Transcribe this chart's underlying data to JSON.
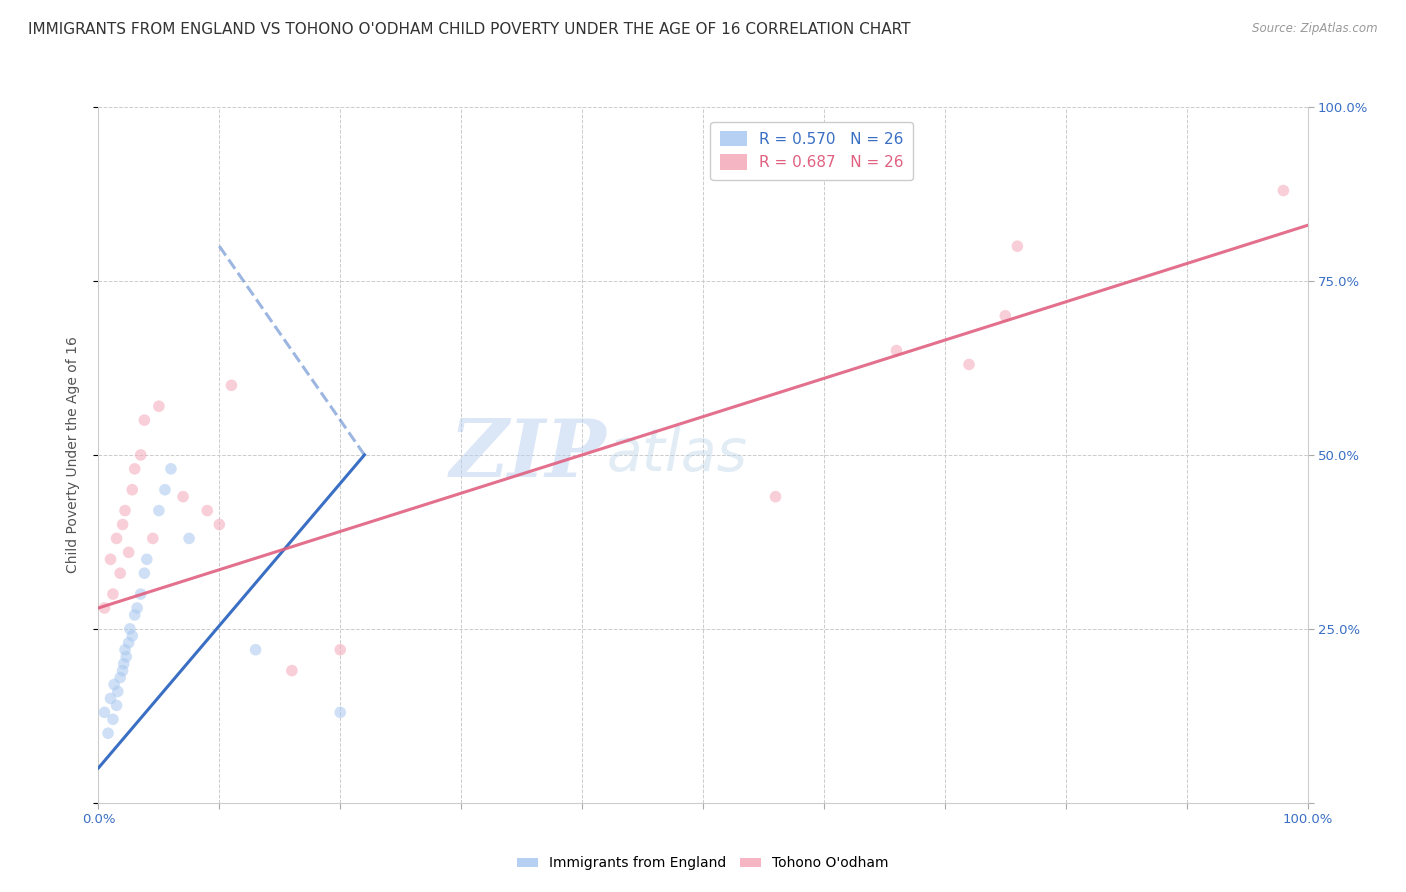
{
  "title": "IMMIGRANTS FROM ENGLAND VS TOHONO O'ODHAM CHILD POVERTY UNDER THE AGE OF 16 CORRELATION CHART",
  "source": "Source: ZipAtlas.com",
  "ylabel": "Child Poverty Under the Age of 16",
  "xlim": [
    0.0,
    1.0
  ],
  "ylim": [
    0.0,
    1.0
  ],
  "xticks": [
    0.0,
    0.1,
    0.2,
    0.3,
    0.4,
    0.5,
    0.6,
    0.7,
    0.8,
    0.9,
    1.0
  ],
  "yticks": [
    0.0,
    0.25,
    0.5,
    0.75,
    1.0
  ],
  "xticklabels": [
    "0.0%",
    "",
    "",
    "",
    "",
    "",
    "",
    "",
    "",
    "",
    "100.0%"
  ],
  "yticklabels_right": [
    "",
    "25.0%",
    "50.0%",
    "75.0%",
    "100.0%"
  ],
  "watermark_zip": "ZIP",
  "watermark_atlas": "atlas",
  "legend_label_blue": "Immigrants from England",
  "legend_label_pink": "Tohono O'odham",
  "blue_color": "#a8c8f0",
  "pink_color": "#f4a8b8",
  "blue_line_color": "#3a6fc4",
  "pink_line_color": "#e06080",
  "title_fontsize": 11,
  "axis_fontsize": 10,
  "tick_fontsize": 9.5,
  "blue_scatter_x": [
    0.005,
    0.008,
    0.01,
    0.012,
    0.013,
    0.015,
    0.016,
    0.018,
    0.02,
    0.021,
    0.022,
    0.023,
    0.025,
    0.026,
    0.028,
    0.03,
    0.032,
    0.035,
    0.038,
    0.04,
    0.05,
    0.055,
    0.06,
    0.075,
    0.13,
    0.2
  ],
  "blue_scatter_y": [
    0.13,
    0.1,
    0.15,
    0.12,
    0.17,
    0.14,
    0.16,
    0.18,
    0.19,
    0.2,
    0.22,
    0.21,
    0.23,
    0.25,
    0.24,
    0.27,
    0.28,
    0.3,
    0.33,
    0.35,
    0.42,
    0.45,
    0.48,
    0.38,
    0.22,
    0.13
  ],
  "pink_scatter_x": [
    0.005,
    0.01,
    0.012,
    0.015,
    0.018,
    0.02,
    0.022,
    0.025,
    0.028,
    0.03,
    0.035,
    0.038,
    0.045,
    0.05,
    0.07,
    0.09,
    0.1,
    0.11,
    0.16,
    0.2,
    0.56,
    0.66,
    0.72,
    0.75,
    0.76,
    0.98
  ],
  "pink_scatter_y": [
    0.28,
    0.35,
    0.3,
    0.38,
    0.33,
    0.4,
    0.42,
    0.36,
    0.45,
    0.48,
    0.5,
    0.55,
    0.38,
    0.57,
    0.44,
    0.42,
    0.4,
    0.6,
    0.19,
    0.22,
    0.44,
    0.65,
    0.63,
    0.7,
    0.8,
    0.88
  ],
  "blue_solid_line_x": [
    0.0,
    0.22
  ],
  "blue_solid_line_y": [
    0.05,
    0.5
  ],
  "blue_dash_line_x": [
    0.1,
    0.22
  ],
  "blue_dash_line_y": [
    0.8,
    0.5
  ],
  "pink_line_x": [
    0.0,
    1.0
  ],
  "pink_line_y": [
    0.28,
    0.83
  ],
  "background_color": "#ffffff",
  "grid_color": "#cccccc",
  "marker_size": 70,
  "marker_alpha": 0.55,
  "line_width": 2.2
}
